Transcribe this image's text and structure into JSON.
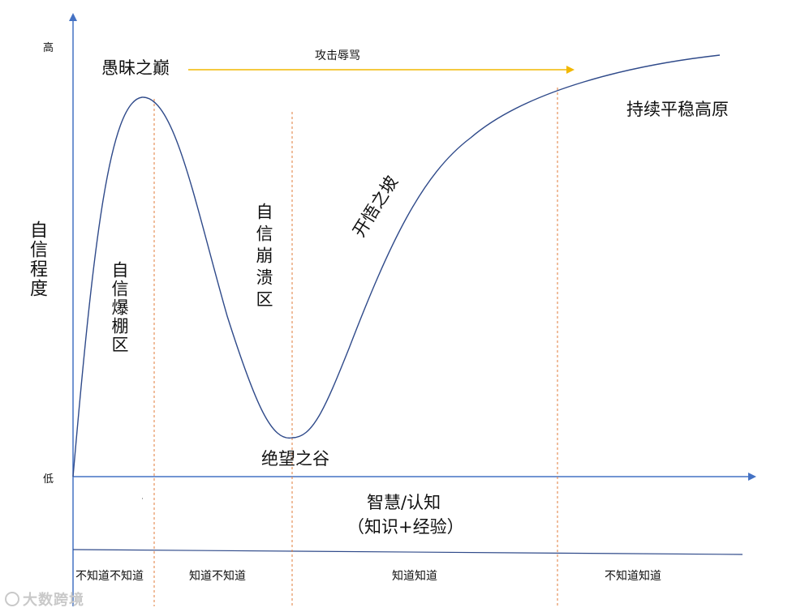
{
  "axes": {
    "y_title": "自信程度",
    "y_high": "高",
    "y_low": "低",
    "x_title_line1": "智慧/认知",
    "x_title_line2": "（知识+经验）"
  },
  "stages": {
    "peak": "愚昧之巅",
    "arrow_label": "攻击辱骂",
    "plateau": "持续平稳高原",
    "confidence_boom": "自信爆棚区",
    "confidence_collapse": "自信崩溃区",
    "enlightenment_slope": "开悟之坡",
    "valley": "绝望之谷"
  },
  "zones": [
    "不知道不知道",
    "知道不知道",
    "知道知道",
    "不知道知道"
  ],
  "watermark": "大数跨境",
  "colors": {
    "axis": "#4472c4",
    "curve": "#2f4a8a",
    "divider": "#e07b39",
    "arrow": "#f2b800"
  }
}
